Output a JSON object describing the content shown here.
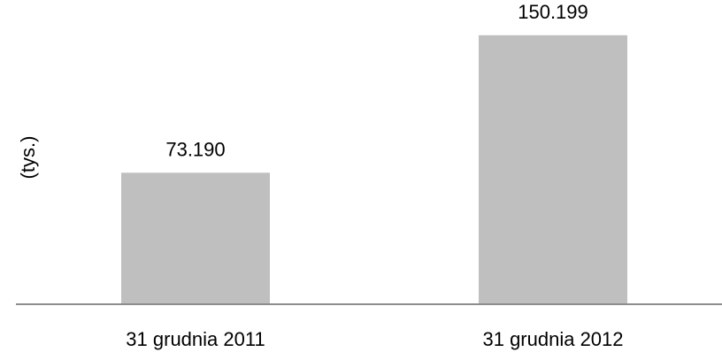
{
  "chart_data": {
    "type": "bar",
    "categories": [
      "31 grudnia 2011",
      "31 grudnia 2012"
    ],
    "values": [
      73.19,
      150.199
    ],
    "value_labels": [
      "73.190",
      "150.199"
    ],
    "title": "",
    "xlabel": "",
    "ylabel": "(tys.)",
    "ylim": [
      0,
      165
    ],
    "grid": false,
    "legend": "none",
    "colors": {
      "bar": "#bfbfbf",
      "axis": "#8c8c8c",
      "text": "#000000"
    }
  }
}
